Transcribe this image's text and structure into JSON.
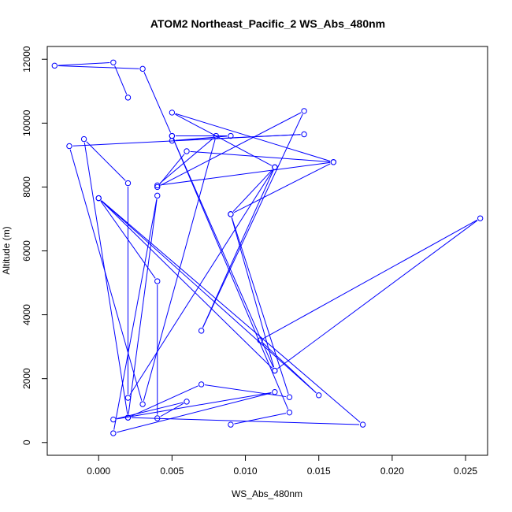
{
  "chart_data": {
    "type": "line",
    "title": "ATOM2 Northeast_Pacific_2 WS_Abs_480nm",
    "xlabel": "WS_Abs_480nm",
    "ylabel": "Altitude (m)",
    "xlim": [
      -0.0035,
      0.0265
    ],
    "ylim": [
      -400,
      12400
    ],
    "x_ticks": [
      0.0,
      0.005,
      0.01,
      0.015,
      0.02,
      0.025
    ],
    "x_tick_labels": [
      "0.000",
      "0.005",
      "0.010",
      "0.015",
      "0.020",
      "0.025"
    ],
    "y_ticks": [
      0,
      2000,
      4000,
      6000,
      8000,
      10000,
      12000
    ],
    "y_tick_labels": [
      "0",
      "2000",
      "4000",
      "6000",
      "8000",
      "10000",
      "12000"
    ],
    "grid": false,
    "legend": "none",
    "series_color": "#0000ff",
    "markers": "open-circle",
    "points": [
      {
        "x": 0.002,
        "y": 10800
      },
      {
        "x": 0.001,
        "y": 11900
      },
      {
        "x": -0.003,
        "y": 11800
      },
      {
        "x": 0.003,
        "y": 11700
      },
      {
        "x": 0.005,
        "y": 9600
      },
      {
        "x": 0.009,
        "y": 9600
      },
      {
        "x": 0.005,
        "y": 9450
      },
      {
        "x": 0.014,
        "y": 9650
      },
      {
        "x": -0.002,
        "y": 9280
      },
      {
        "x": 0.003,
        "y": 1200
      },
      {
        "x": 0.008,
        "y": 9600
      },
      {
        "x": 0.004,
        "y": 8050
      },
      {
        "x": 0.016,
        "y": 8780
      },
      {
        "x": 0.006,
        "y": 9120
      },
      {
        "x": 0.004,
        "y": 8000
      },
      {
        "x": 0.014,
        "y": 10380
      },
      {
        "x": 0.007,
        "y": 3500
      },
      {
        "x": 0.012,
        "y": 8620
      },
      {
        "x": 0.002,
        "y": 1400
      },
      {
        "x": 0.002,
        "y": 8120
      },
      {
        "x": -0.001,
        "y": 9500
      },
      {
        "x": 0.002,
        "y": 780
      },
      {
        "x": 0.004,
        "y": 7730
      },
      {
        "x": 0.001,
        "y": 290
      },
      {
        "x": 0.012,
        "y": 1580
      },
      {
        "x": 0.001,
        "y": 720
      },
      {
        "x": 0.006,
        "y": 1280
      },
      {
        "x": 0.004,
        "y": 760
      },
      {
        "x": 0.004,
        "y": 5050
      },
      {
        "x": 0.0,
        "y": 7650
      },
      {
        "x": 0.015,
        "y": 1480
      },
      {
        "x": 0.011,
        "y": 3200
      },
      {
        "x": 0.026,
        "y": 7020
      },
      {
        "x": 0.012,
        "y": 2250
      },
      {
        "x": 0.009,
        "y": 7150
      },
      {
        "x": 0.016,
        "y": 8780
      },
      {
        "x": 0.005,
        "y": 10330
      },
      {
        "x": 0.012,
        "y": 8620
      },
      {
        "x": 0.009,
        "y": 7150
      },
      {
        "x": 0.013,
        "y": 1420
      },
      {
        "x": 0.007,
        "y": 1820
      },
      {
        "x": 0.002,
        "y": 780
      },
      {
        "x": 0.018,
        "y": 560
      },
      {
        "x": 0.0,
        "y": 7650
      },
      {
        "x": 0.012,
        "y": 2250
      },
      {
        "x": 0.005,
        "y": 9600
      },
      {
        "x": 0.013,
        "y": 940
      },
      {
        "x": 0.009,
        "y": 560
      }
    ]
  }
}
